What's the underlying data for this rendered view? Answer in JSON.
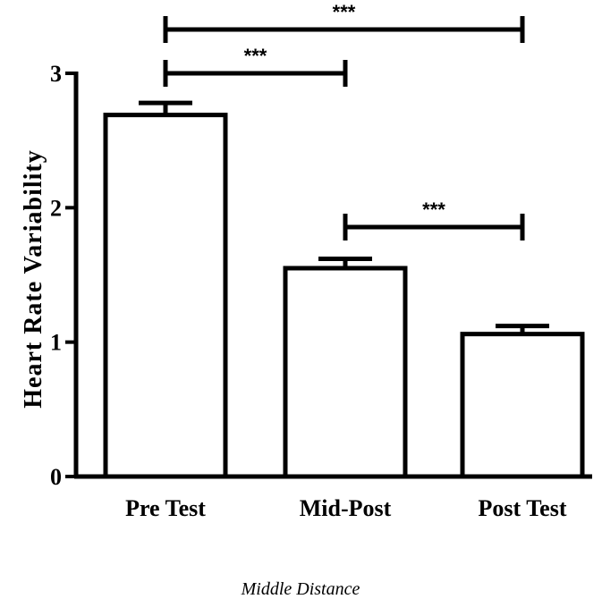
{
  "chart_data": {
    "type": "bar",
    "categories": [
      "Pre Test",
      "Mid-Post",
      "Post Test"
    ],
    "values": [
      2.69,
      1.55,
      1.06
    ],
    "errors": [
      0.09,
      0.07,
      0.06
    ],
    "ylabel": "Heart Rate Variability",
    "xlabel": "Middle Distance",
    "ylim": [
      0,
      3
    ],
    "yticks": [
      0,
      1,
      2,
      3
    ],
    "grid": false,
    "bar_fill": "#ffffff",
    "bar_stroke": "#000000",
    "significance": [
      {
        "from": 0,
        "to": 1,
        "label": "***"
      },
      {
        "from": 0,
        "to": 2,
        "label": "***"
      },
      {
        "from": 1,
        "to": 2,
        "label": "***"
      }
    ]
  }
}
